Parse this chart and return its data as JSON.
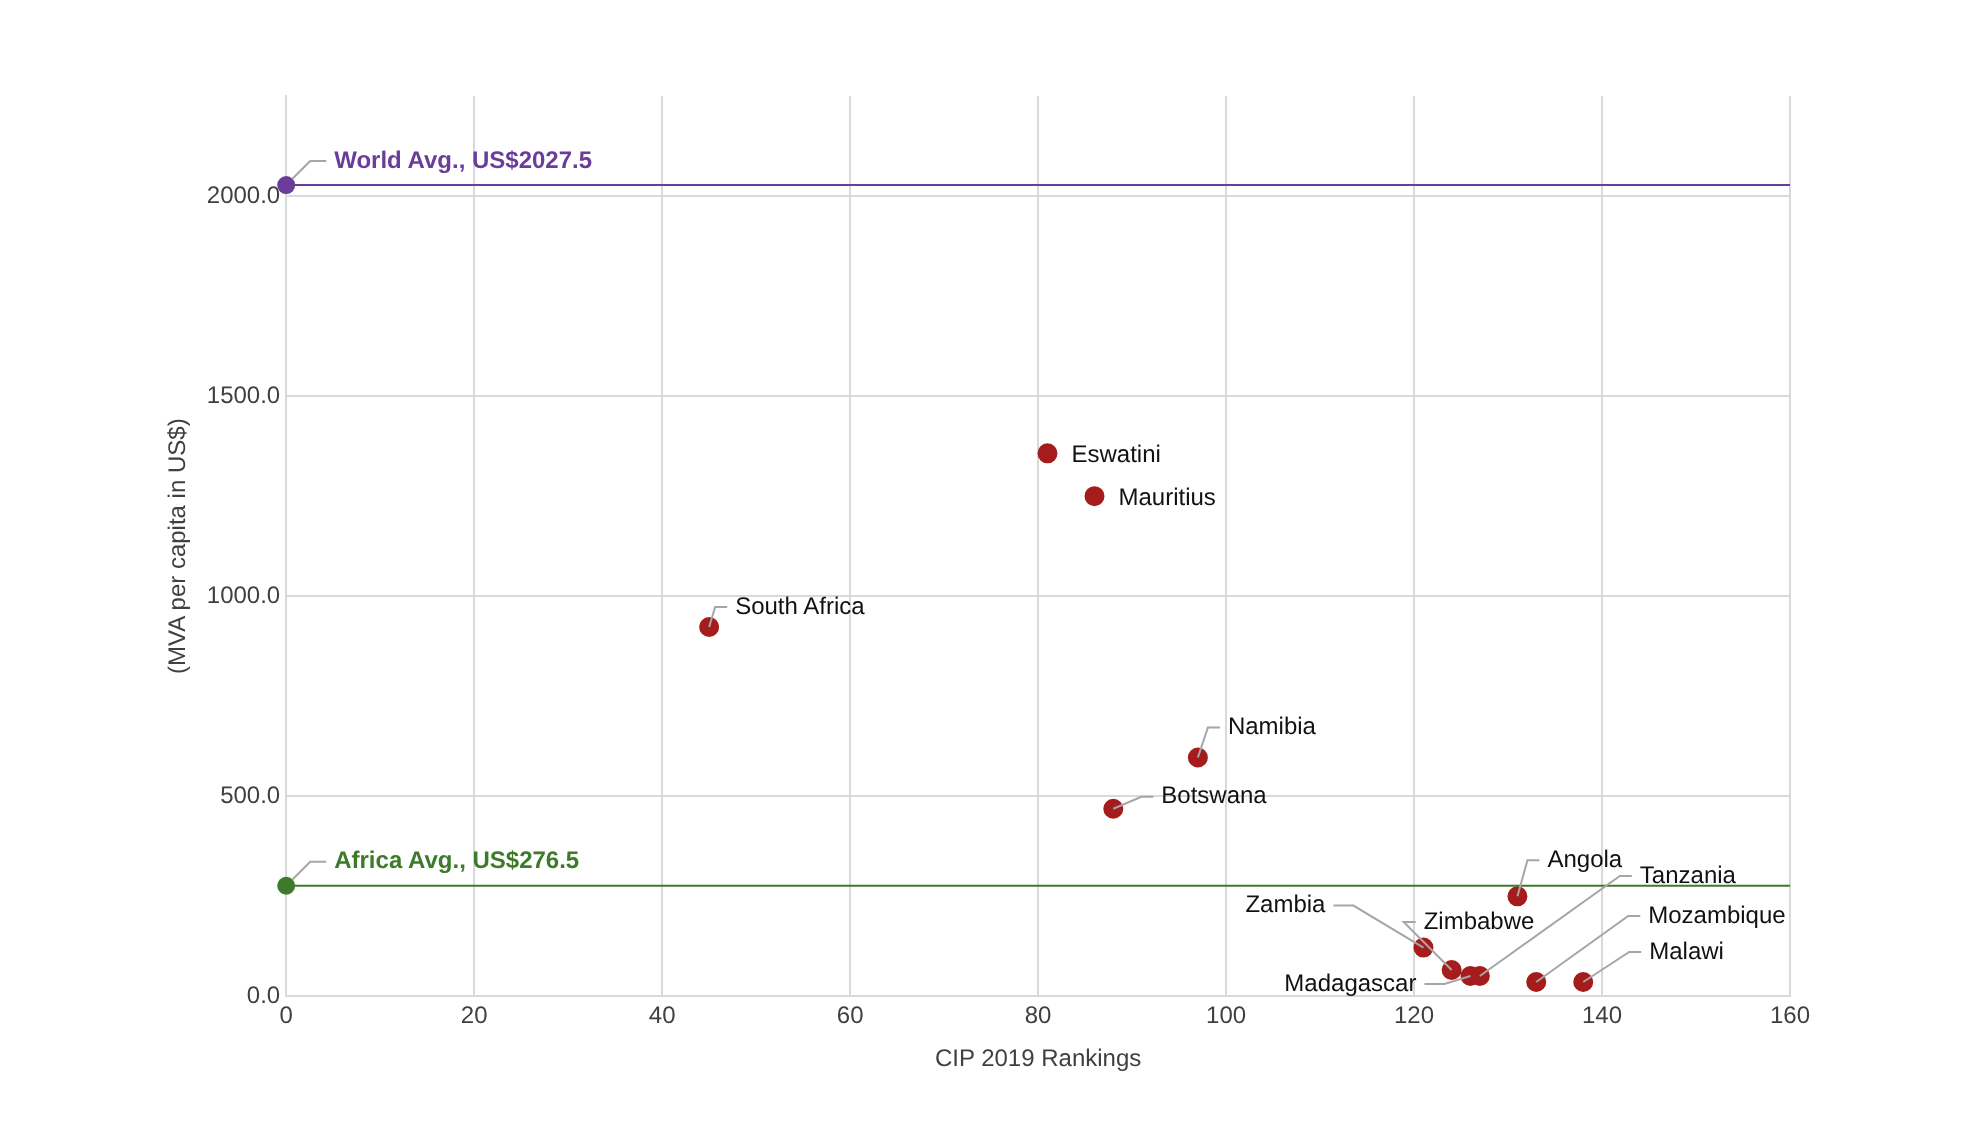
{
  "chart_data": {
    "type": "scatter",
    "xlabel": "CIP 2019 Rankings",
    "ylabel": "(MVA per capita in US$)",
    "x": [
      45,
      81,
      86,
      97,
      88,
      131,
      121,
      124,
      126,
      127,
      133,
      138
    ],
    "series": [
      {
        "color": "#a51c1c",
        "values": [
          923,
          1357,
          1250,
          597,
          469,
          250,
          122,
          66,
          51,
          51,
          36,
          36
        ]
      }
    ],
    "annotations": [
      {
        "text": "South Africa",
        "x": 45,
        "y": 923
      },
      {
        "text": "Eswatini",
        "x": 81,
        "y": 1357
      },
      {
        "text": "Mauritius",
        "x": 86,
        "y": 1250
      },
      {
        "text": "Namibia",
        "x": 97,
        "y": 597
      },
      {
        "text": "Botswana",
        "x": 88,
        "y": 469
      },
      {
        "text": "Angola",
        "x": 131,
        "y": 250
      },
      {
        "text": "Zambia",
        "x": 121,
        "y": 122
      },
      {
        "text": "Zimbabwe",
        "x": 124,
        "y": 66
      },
      {
        "text": "Madagascar",
        "x": 126,
        "y": 51
      },
      {
        "text": "Tanzania",
        "x": 127,
        "y": 51
      },
      {
        "text": "Mozambique",
        "x": 133,
        "y": 36
      },
      {
        "text": "Malawi",
        "x": 138,
        "y": 36
      }
    ],
    "ref_lines": [
      {
        "axis": "y",
        "value": 2027.5,
        "label": "World Avg., US$2027.5",
        "color": "#6a3d9a"
      },
      {
        "axis": "y",
        "value": 276.5,
        "label": "Africa Avg., US$276.5",
        "color": "#3d7a2a"
      }
    ],
    "xlim": [
      0,
      160
    ],
    "xticks": [
      0,
      20,
      40,
      60,
      80,
      100,
      120,
      140,
      160
    ],
    "ylim": [
      0,
      2250
    ],
    "yticks": [
      {
        "value": 0,
        "label": "0.0"
      },
      {
        "value": 500,
        "label": "500.0"
      },
      {
        "value": 1000,
        "label": "1000.0"
      },
      {
        "value": 1500,
        "label": "1500.0"
      },
      {
        "value": 2000,
        "label": "2000.0"
      }
    ],
    "grid": true,
    "legend": false,
    "marker": "circle"
  }
}
